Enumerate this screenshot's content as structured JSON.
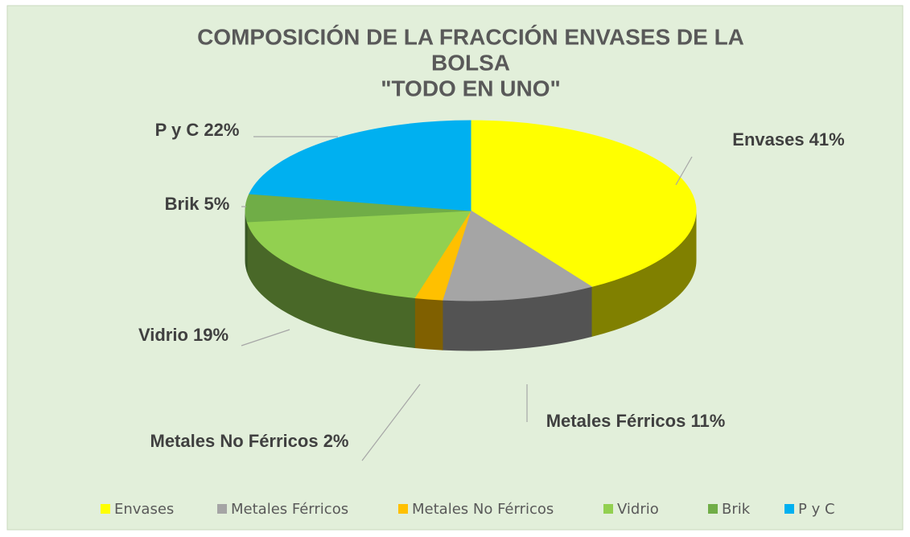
{
  "chart_data": {
    "type": "pie",
    "title": [
      "COMPOSICIÓN DE LA FRACCIÓN ENVASES DE LA",
      "BOLSA",
      "\"TODO EN UNO\""
    ],
    "categories": [
      "Envases",
      "Metales Férricos",
      "Metales No Férricos",
      "Vidrio",
      "Brik",
      "P y C"
    ],
    "values": [
      41,
      11,
      2,
      19,
      5,
      22
    ],
    "value_labels": [
      "Envases 41%",
      "Metales Férricos 11%",
      "Metales No Férricos 2%",
      "Vidrio 19%",
      "Brik 5%",
      "P y C 22%"
    ],
    "colors": [
      "#ffff00",
      "#a5a5a5",
      "#ffc000",
      "#92d050",
      "#70ad47",
      "#00b0f0"
    ],
    "legend": "bottom"
  }
}
